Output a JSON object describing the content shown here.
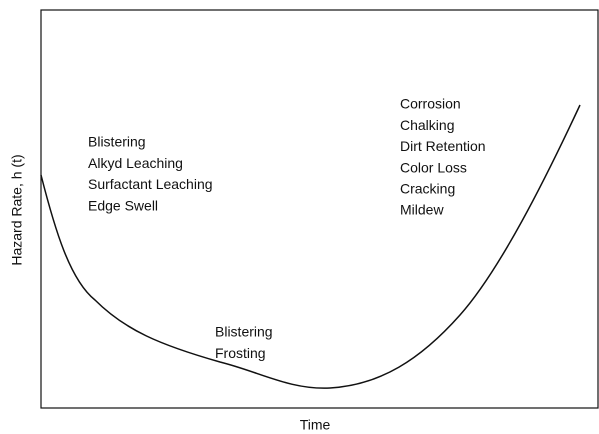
{
  "axes": {
    "x_label": "Time",
    "y_label": "Hazard Rate, h (t)"
  },
  "annotations": [
    {
      "lines": [
        "Blistering",
        "Alkyd Leaching",
        "Surfactant Leaching",
        "Edge Swell"
      ]
    },
    {
      "lines": [
        "Blistering",
        "Frosting"
      ]
    },
    {
      "lines": [
        "Corrosion",
        "Chalking",
        "Dirt Retention",
        "Color Loss",
        "Cracking",
        "Mildew"
      ]
    }
  ]
}
